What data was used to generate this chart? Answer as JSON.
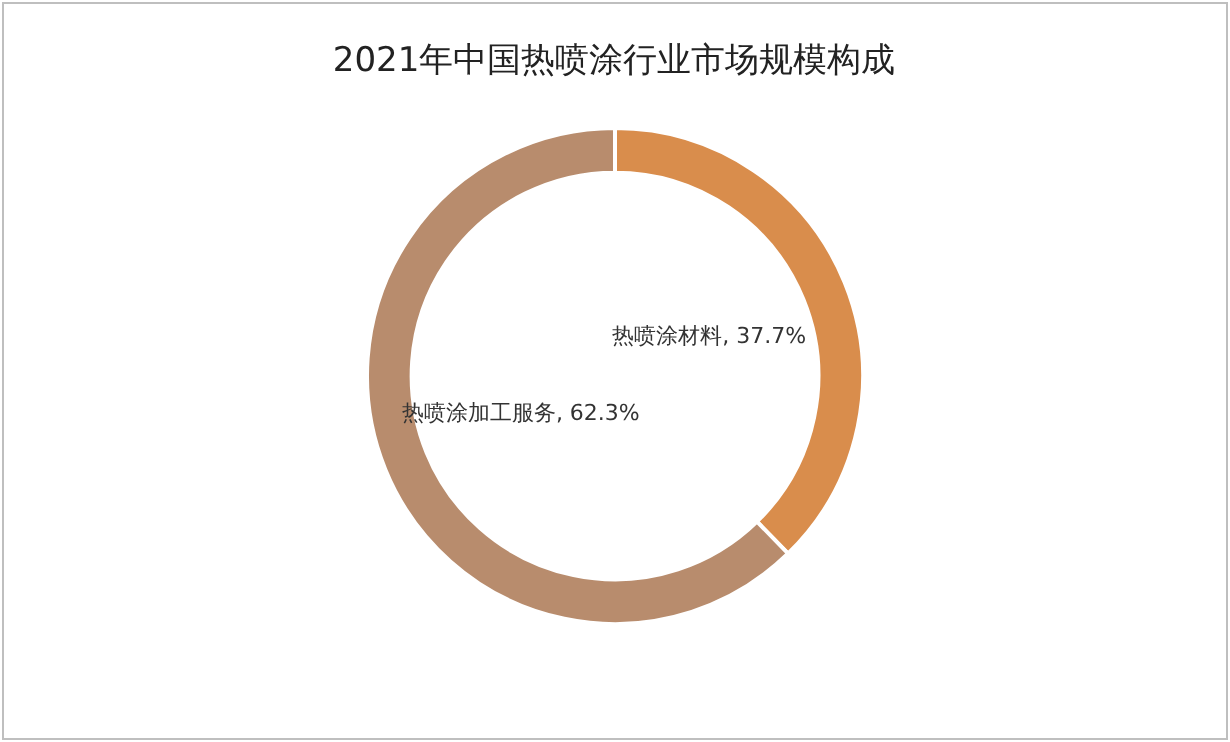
{
  "chart_data": {
    "type": "donut",
    "title": "2021年中国热喷涂行业市场规模构成",
    "categories": [
      "热喷涂材料",
      "热喷涂加工服务"
    ],
    "values": [
      37.7,
      62.3
    ],
    "colors": [
      "#d98d4c",
      "#b88c6d"
    ],
    "value_labels": [
      "37.7%",
      "62.3%"
    ]
  }
}
